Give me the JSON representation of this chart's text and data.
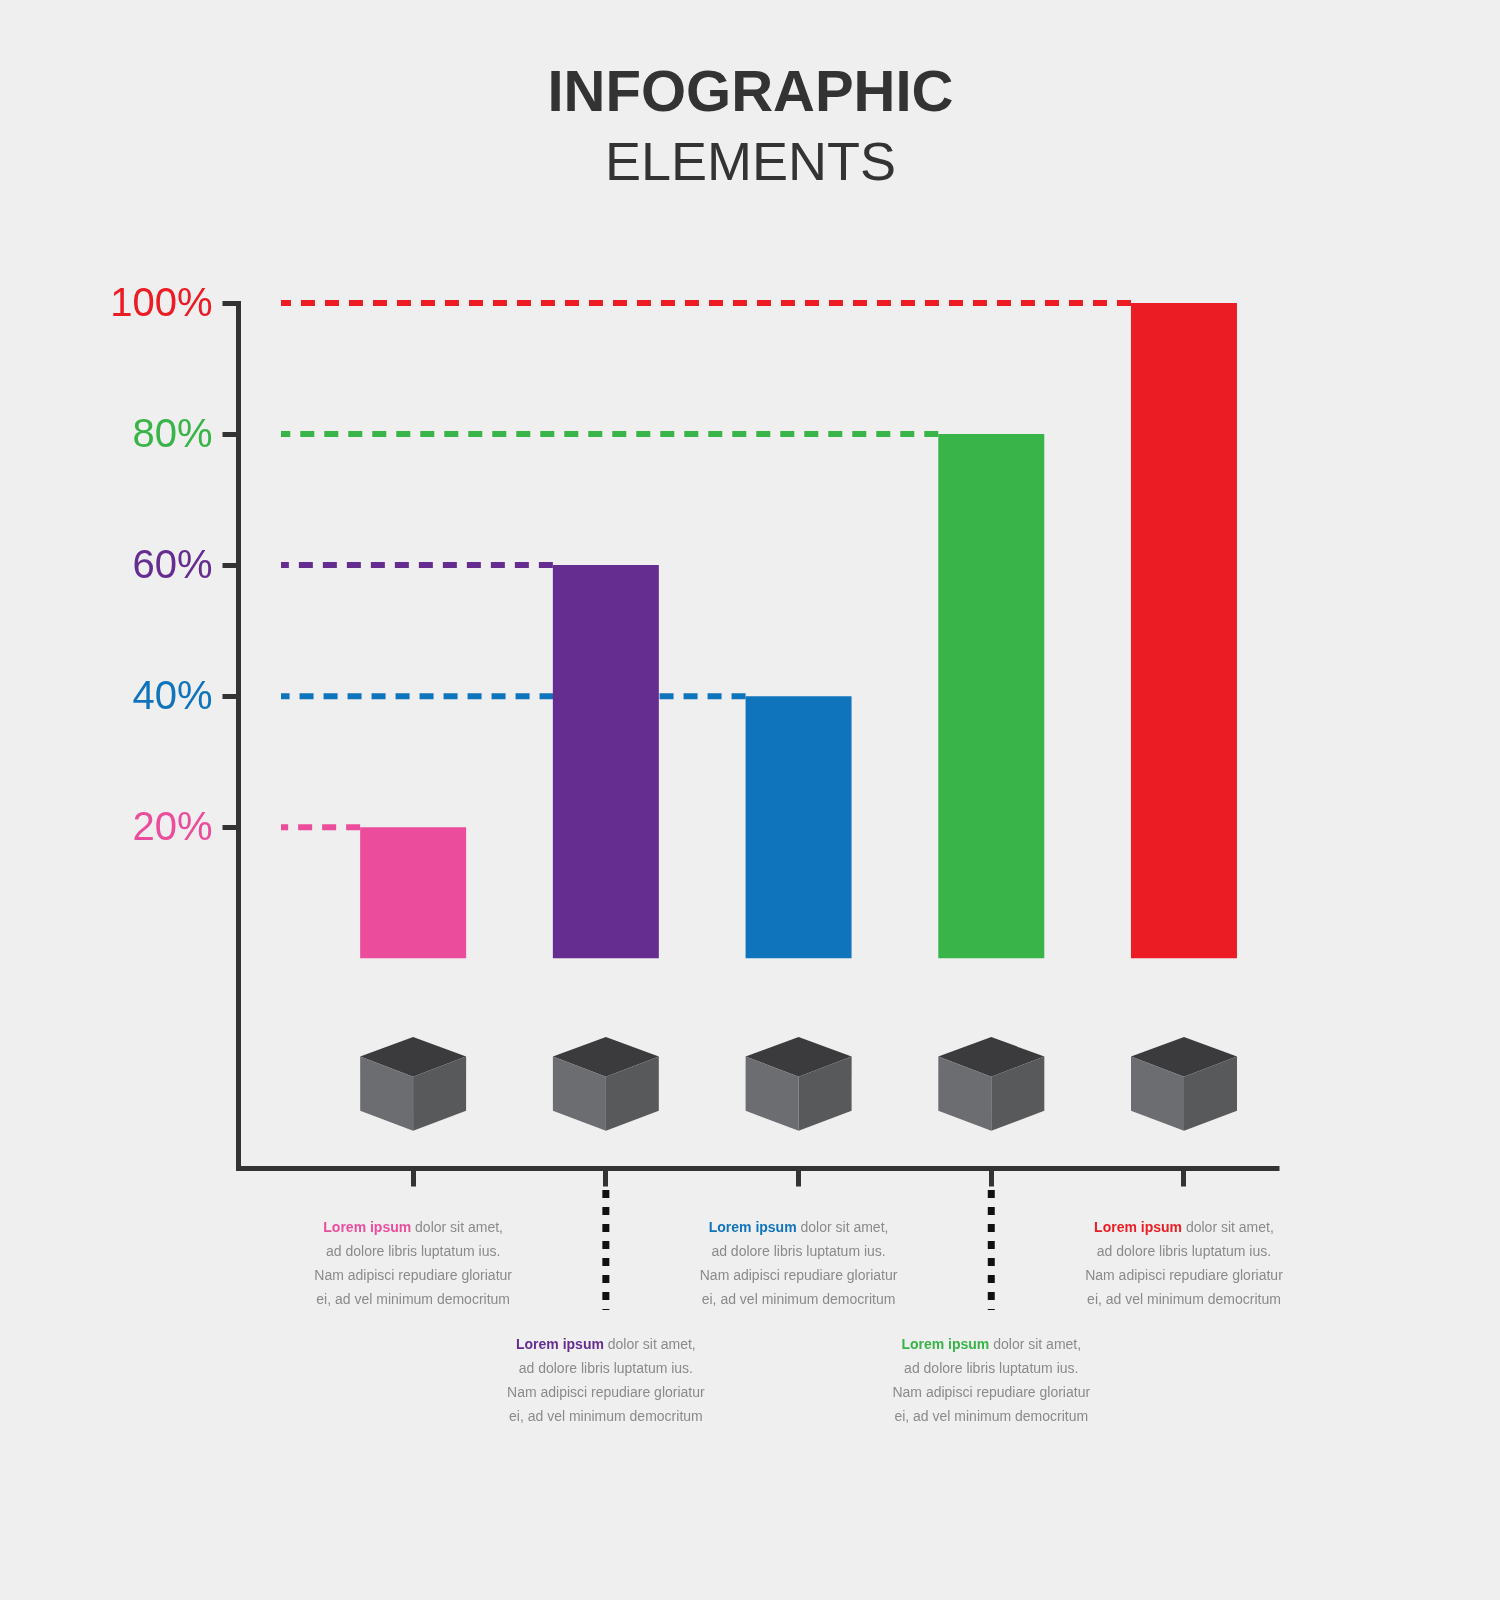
{
  "chart_data": {
    "type": "bar",
    "title": "INFOGRAPHIC",
    "subtitle": "ELEMENTS",
    "categories": [
      null,
      null,
      null,
      null,
      null
    ],
    "values": [
      20,
      60,
      40,
      80,
      100
    ],
    "colors": [
      "#ec4c9c",
      "#652d90",
      "#1074bc",
      "#39b449",
      "#ec1c24"
    ],
    "ylim": [
      -32,
      100
    ],
    "yticks": [
      {
        "value": 20,
        "label": "20%"
      },
      {
        "value": 40,
        "label": "40%"
      },
      {
        "value": 60,
        "label": "60%"
      },
      {
        "value": 80,
        "label": "80%"
      },
      {
        "value": 100,
        "label": "100%"
      }
    ],
    "ref_lines": [
      {
        "axis": "y",
        "value": 20,
        "color": "#ec4c9c",
        "line_style": "dashed"
      },
      {
        "axis": "y",
        "value": 60,
        "color": "#652d90",
        "line_style": "dashed"
      },
      {
        "axis": "y",
        "value": 40,
        "color": "#1074bc",
        "line_style": "dashed"
      },
      {
        "axis": "y",
        "value": 80,
        "color": "#39b449",
        "line_style": "dashed"
      },
      {
        "axis": "y",
        "value": 100,
        "color": "#ec1c24",
        "line_style": "dashed"
      }
    ],
    "annotations": [
      "Lorem ipsum dolor sit amet, ad dolore libris luptatum ius. Nam adipisci repudiare gloriatur ei, ad vel minimum democritum",
      "Lorem ipsum dolor sit amet, ad dolore libris luptatum ius. Nam adipisci repudiare gloriatur ei, ad vel minimum democritum",
      "Lorem ipsum dolor sit amet, ad dolore libris luptatum ius. Nam adipisci repudiare gloriatur ei, ad vel minimum democritum",
      "Lorem ipsum dolor sit amet, ad dolore libris luptatum ius. Nam adipisci repudiare gloriatur ei, ad vel minimum democritum",
      "Lorem ipsum dolor sit amet, ad dolore libris luptatum ius. Nam adipisci repudiare gloriatur ei, ad vel minimum democritum"
    ]
  }
}
